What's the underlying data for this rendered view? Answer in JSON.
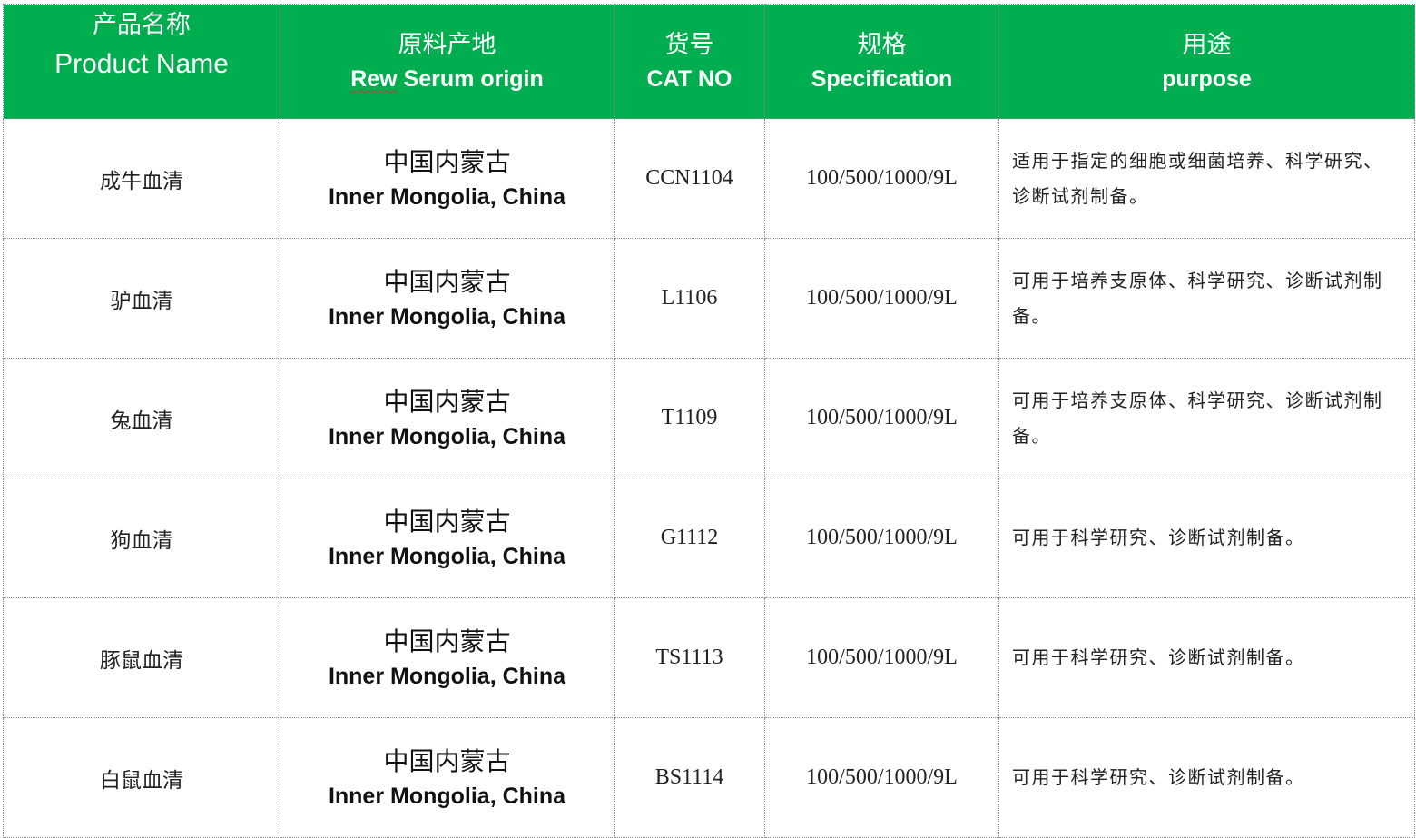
{
  "header": {
    "product_name": {
      "zh": "产品名称",
      "en": "Product Name"
    },
    "origin": {
      "zh": "原料产地",
      "en_word1": "Rew",
      "en_rest": " Serum origin"
    },
    "cat_no": {
      "zh": "货号",
      "en": "CAT NO"
    },
    "specification": {
      "zh": "规格",
      "en": "Specification"
    },
    "purpose": {
      "zh": "用途",
      "en": "purpose"
    }
  },
  "colors": {
    "header_bg": "#00ad4f",
    "header_text": "#ffffff"
  },
  "rows": [
    {
      "name": "成牛血清",
      "origin_zh": "中国内蒙古",
      "origin_en": "Inner Mongolia, China",
      "cat": "CCN1104",
      "spec": "100/500/1000/9L",
      "purpose": "适用于指定的细胞或细菌培养、科学研究、诊断试剂制备。"
    },
    {
      "name": "驴血清",
      "origin_zh": "中国内蒙古",
      "origin_en": "Inner Mongolia, China",
      "cat": "L1106",
      "spec": "100/500/1000/9L",
      "purpose": "可用于培养支原体、科学研究、诊断试剂制备。"
    },
    {
      "name": "兔血清",
      "origin_zh": "中国内蒙古",
      "origin_en": "Inner Mongolia, China",
      "cat": "T1109",
      "spec": "100/500/1000/9L",
      "purpose": "可用于培养支原体、科学研究、诊断试剂制备。"
    },
    {
      "name": "狗血清",
      "origin_zh": "中国内蒙古",
      "origin_en": "Inner Mongolia, China",
      "cat": "G1112",
      "spec": "100/500/1000/9L",
      "purpose": "可用于科学研究、诊断试剂制备。"
    },
    {
      "name": "豚鼠血清",
      "origin_zh": "中国内蒙古",
      "origin_en": "Inner Mongolia, China",
      "cat": "TS1113",
      "spec": "100/500/1000/9L",
      "purpose": "可用于科学研究、诊断试剂制备。"
    },
    {
      "name": "白鼠血清",
      "origin_zh": "中国内蒙古",
      "origin_en": "Inner Mongolia, China",
      "cat": "BS1114",
      "spec": "100/500/1000/9L",
      "purpose": "可用于科学研究、诊断试剂制备。"
    }
  ]
}
